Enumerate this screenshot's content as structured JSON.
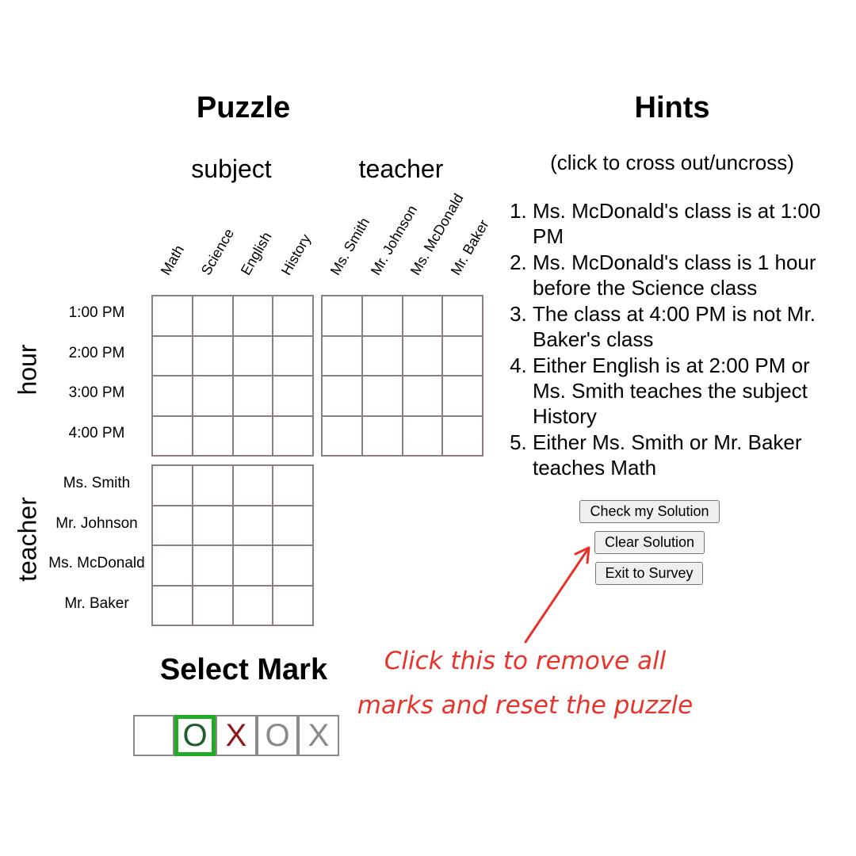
{
  "puzzle": {
    "title": "Puzzle",
    "subject_group": "subject",
    "teacher_group": "teacher",
    "subject_cols": [
      "Math",
      "Science",
      "English",
      "History"
    ],
    "teacher_cols": [
      "Ms. Smith",
      "Mr. Johnson",
      "Ms. McDonald",
      "Mr. Baker"
    ],
    "hour_axis": "hour",
    "teacher_axis": "teacher",
    "hour_rows": [
      "1:00 PM",
      "2:00 PM",
      "3:00 PM",
      "4:00 PM"
    ],
    "teacher_rows": [
      "Ms. Smith",
      "Mr. Johnson",
      "Ms. McDonald",
      "Mr. Baker"
    ]
  },
  "hints": {
    "title": "Hints",
    "subtitle": "(click to cross out/uncross)",
    "items": [
      "Ms. McDonald's class is at 1:00 PM",
      "Ms. McDonald's class is 1 hour before the Science class",
      "The class at 4:00 PM is not Mr. Baker's class",
      "Either English is at 2:00 PM or Ms. Smith teaches the subject History",
      "Either Ms. Smith or Mr. Baker teaches Math"
    ]
  },
  "buttons": {
    "check": "Check my Solution",
    "clear": "Clear Solution",
    "exit": "Exit to Survey"
  },
  "select_mark": {
    "title": "Select Mark",
    "marks": [
      {
        "symbol": "",
        "color": "#000000"
      },
      {
        "symbol": "O",
        "color": "#1e5e2e"
      },
      {
        "symbol": "X",
        "color": "#8b1a1a"
      },
      {
        "symbol": "O",
        "color": "#8a8a8a"
      },
      {
        "symbol": "X",
        "color": "#8a8a8a"
      }
    ],
    "selected_index": 1
  },
  "annotation": {
    "line1": "Click this to remove all",
    "line2": "marks and reset the puzzle",
    "color": "#e8322c"
  }
}
